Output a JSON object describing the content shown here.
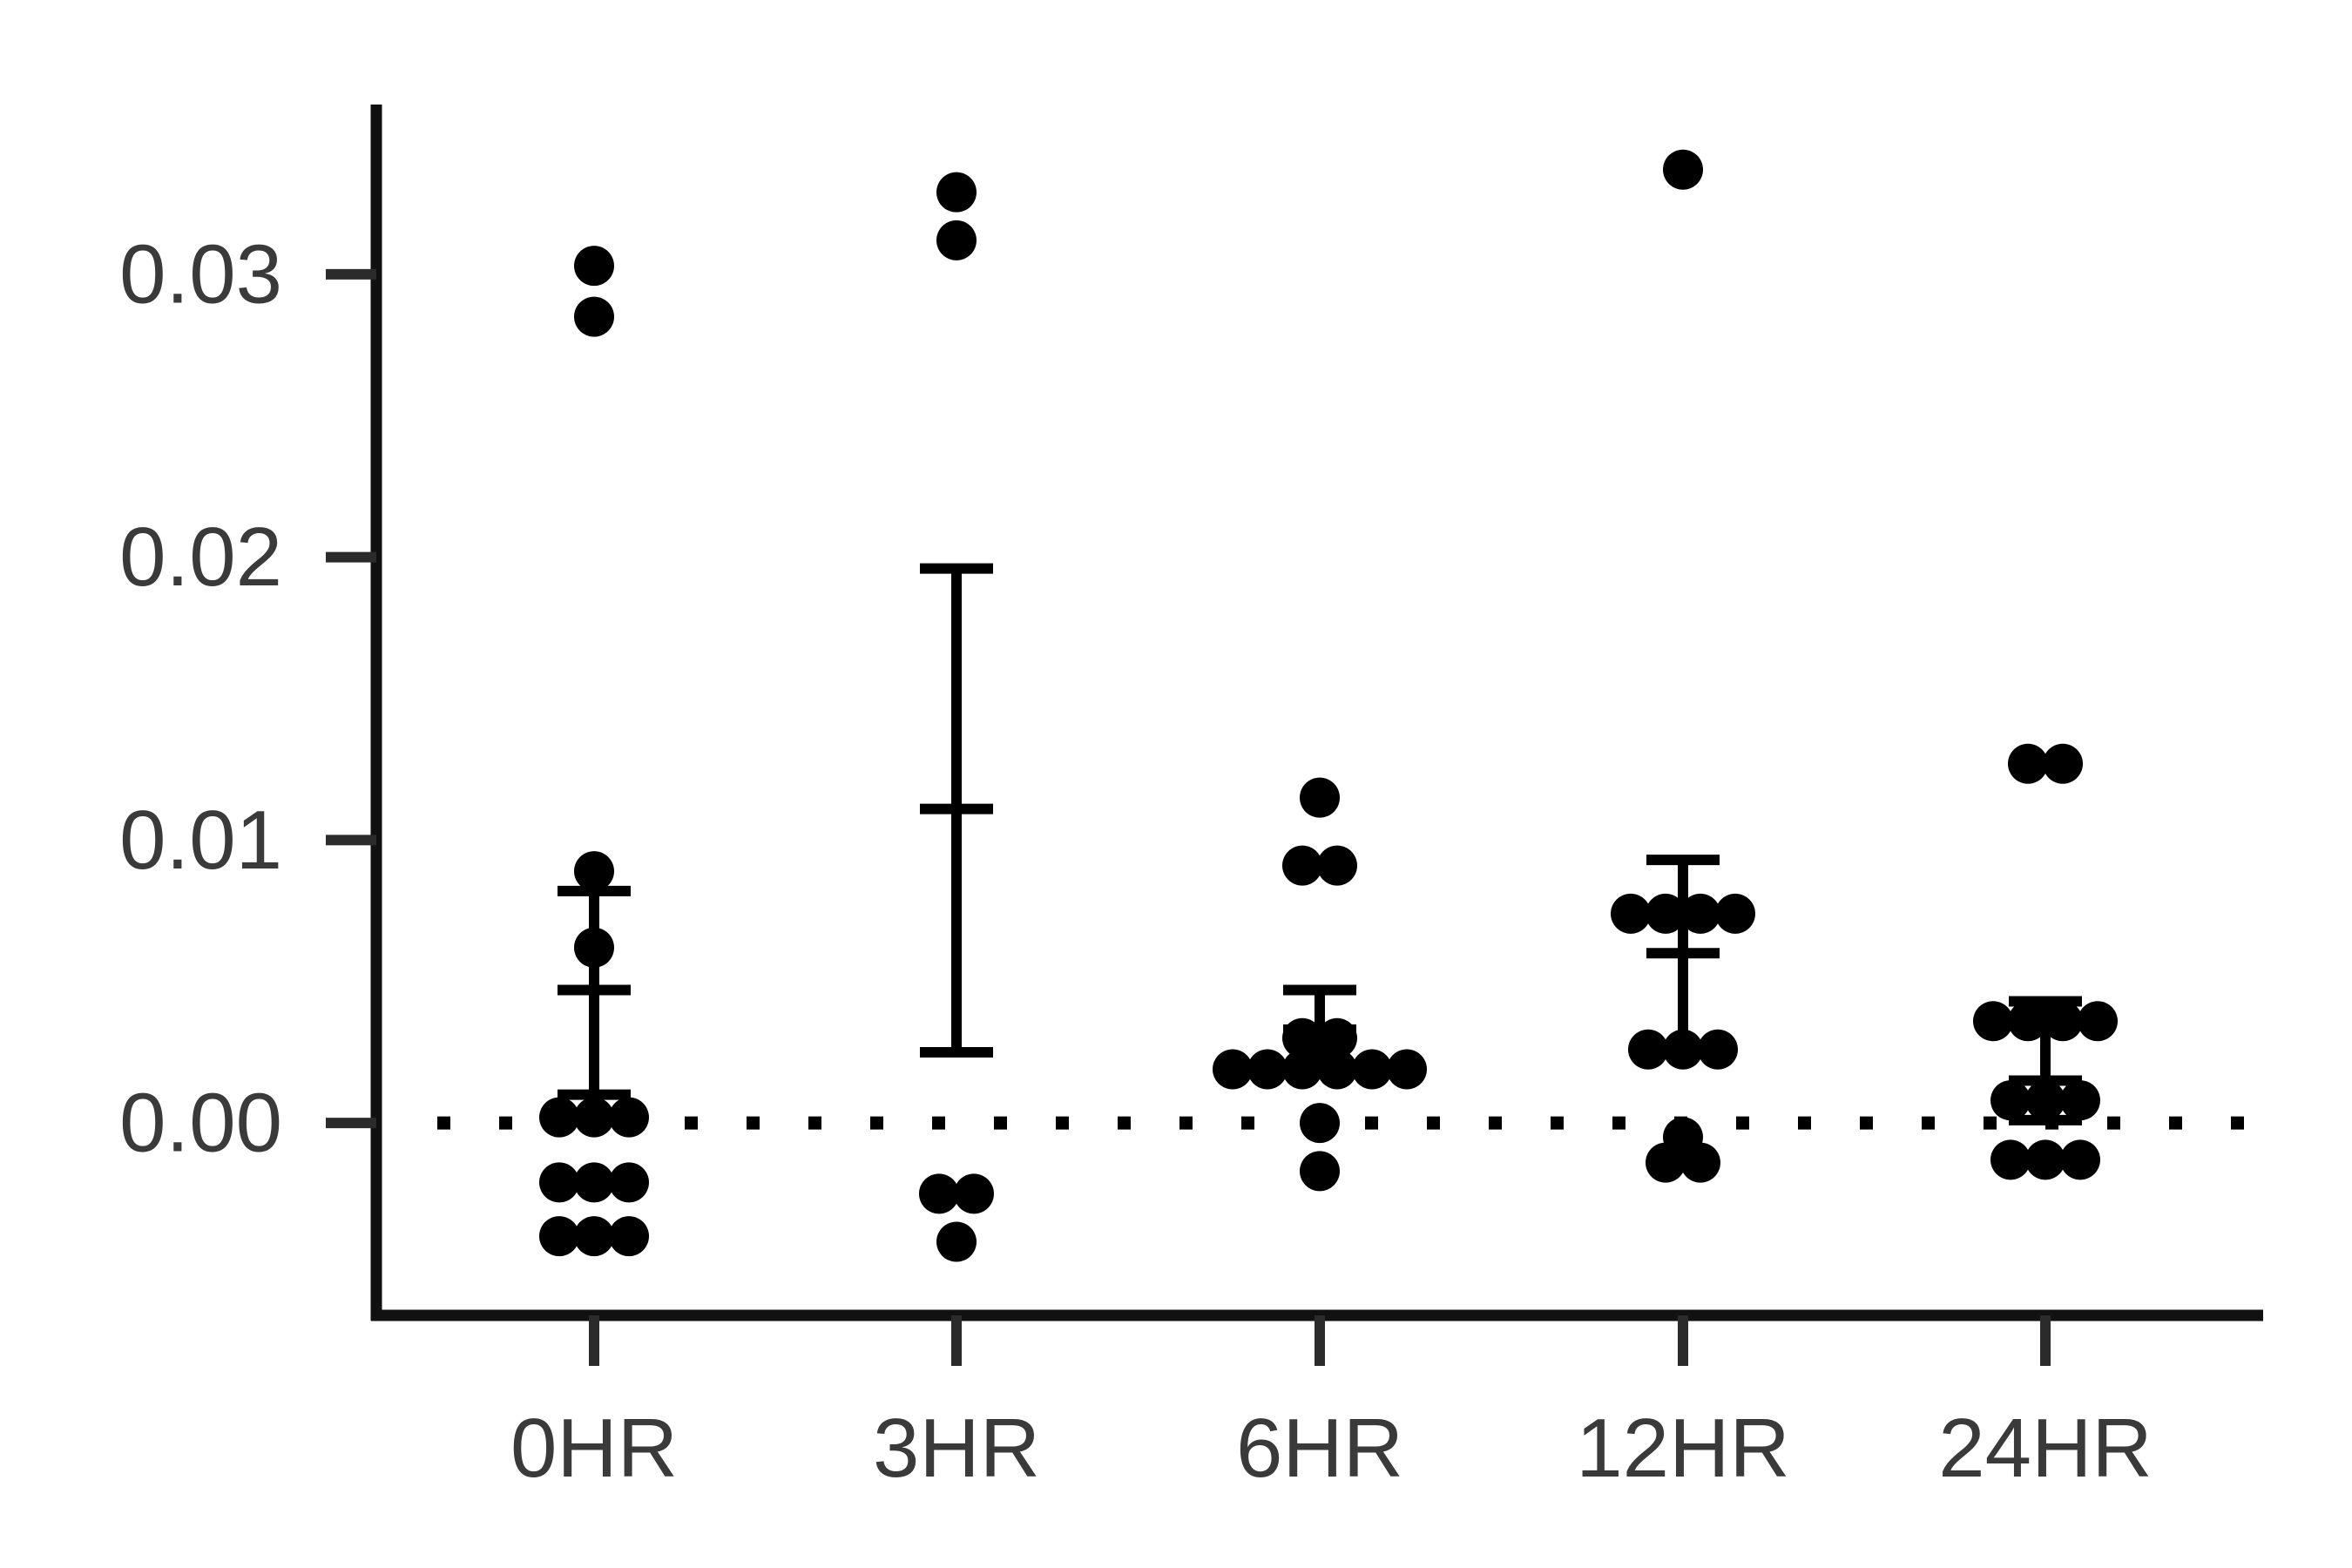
{
  "chart_data": {
    "type": "scatter",
    "title": "",
    "xlabel": "",
    "ylabel": "",
    "categories": [
      "0HR",
      "3HR",
      "6HR",
      "12HR",
      "24HR"
    ],
    "ylim": [
      -0.0068,
      0.036
    ],
    "yticks": [
      0.0,
      0.01,
      0.02,
      0.03
    ],
    "ytick_labels": [
      "0.00",
      "0.01",
      "0.02",
      "0.03"
    ],
    "reference_line": {
      "y": 0.0,
      "style": "dotted"
    },
    "grid": false,
    "legend": "none",
    "colors": {
      "points": "#000000",
      "axis": "#111111",
      "tick": "#2b2b2b",
      "label": "#3a3a3a"
    },
    "points": [
      [
        0.0303,
        0.0285,
        0.0089,
        0.0062,
        0.0002,
        0.0002,
        0.0002,
        -0.0021,
        -0.0021,
        -0.0021,
        -0.004,
        -0.004,
        -0.004
      ],
      [
        0.0329,
        0.0312,
        -0.0025,
        -0.0025,
        -0.0042
      ],
      [
        0.0115,
        0.0091,
        0.0091,
        0.003,
        0.003,
        0.0019,
        0.0019,
        0.0019,
        0.0019,
        0.0019,
        0.0019,
        0.0,
        -0.0017
      ],
      [
        0.0337,
        0.0074,
        0.0074,
        0.0074,
        0.0074,
        0.0026,
        0.0026,
        0.0026,
        -0.0005,
        -0.0014,
        -0.0014
      ],
      [
        0.0127,
        0.0127,
        0.0036,
        0.0036,
        0.0036,
        0.0036,
        0.0008,
        0.0008,
        0.0008,
        -0.0013,
        -0.0013,
        -0.0013
      ]
    ],
    "mean": [
      0.0047,
      0.0111,
      0.0033,
      0.006,
      0.0015
    ],
    "error_upper": [
      0.0082,
      0.0196,
      0.0047,
      0.0093,
      0.0043
    ],
    "error_lower": [
      0.001,
      0.0025,
      0.002,
      0.0026,
      0.0001
    ]
  }
}
